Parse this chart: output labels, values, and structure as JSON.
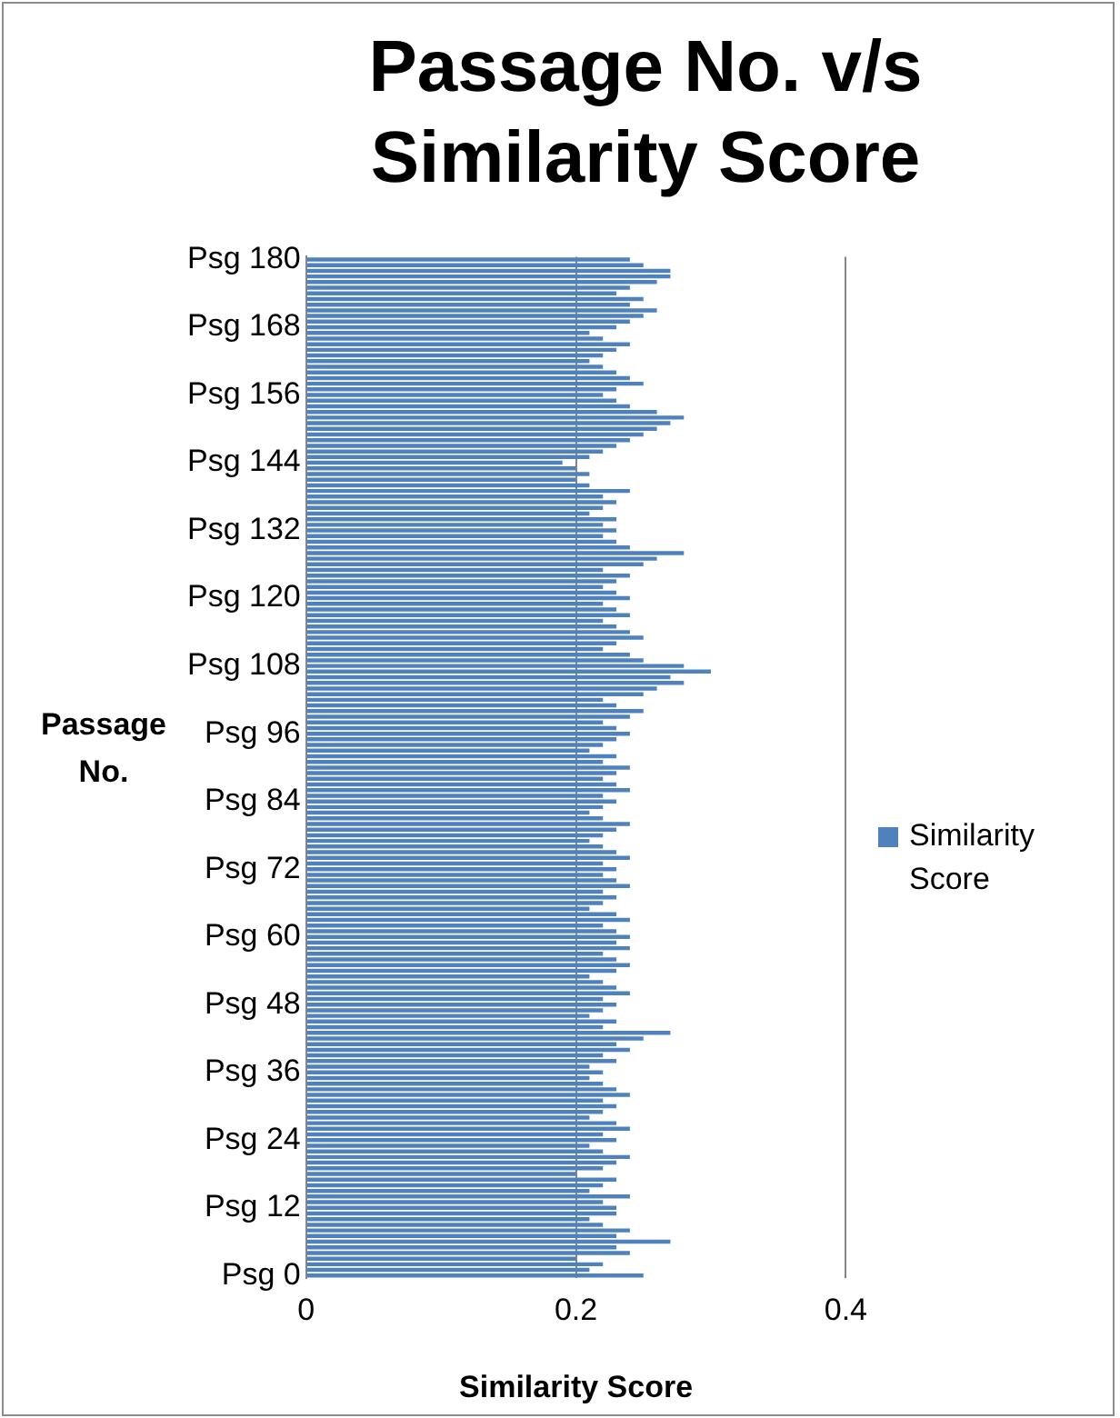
{
  "chart_data": {
    "type": "bar",
    "orientation": "horizontal",
    "title": "Passage No. v/s Similarity Score",
    "xlabel": "Similarity Score",
    "ylabel": "Passage No.",
    "categories": [
      "Psg 180",
      null,
      null,
      null,
      null,
      null,
      null,
      null,
      null,
      null,
      null,
      null,
      "Psg 168",
      null,
      null,
      null,
      null,
      null,
      null,
      null,
      null,
      null,
      null,
      null,
      "Psg 156",
      null,
      null,
      null,
      null,
      null,
      null,
      null,
      null,
      null,
      null,
      null,
      "Psg 144",
      null,
      null,
      null,
      null,
      null,
      null,
      null,
      null,
      null,
      null,
      null,
      "Psg 132",
      null,
      null,
      null,
      null,
      null,
      null,
      null,
      null,
      null,
      null,
      null,
      "Psg 120",
      null,
      null,
      null,
      null,
      null,
      null,
      null,
      null,
      null,
      null,
      null,
      "Psg 108",
      null,
      null,
      null,
      null,
      null,
      null,
      null,
      null,
      null,
      null,
      null,
      "Psg 96",
      null,
      null,
      null,
      null,
      null,
      null,
      null,
      null,
      null,
      null,
      null,
      "Psg 84",
      null,
      null,
      null,
      null,
      null,
      null,
      null,
      null,
      null,
      null,
      null,
      "Psg 72",
      null,
      null,
      null,
      null,
      null,
      null,
      null,
      null,
      null,
      null,
      null,
      "Psg 60",
      null,
      null,
      null,
      null,
      null,
      null,
      null,
      null,
      null,
      null,
      null,
      "Psg 48",
      null,
      null,
      null,
      null,
      null,
      null,
      null,
      null,
      null,
      null,
      null,
      "Psg 36",
      null,
      null,
      null,
      null,
      null,
      null,
      null,
      null,
      null,
      null,
      null,
      "Psg 24",
      null,
      null,
      null,
      null,
      null,
      null,
      null,
      null,
      null,
      null,
      null,
      "Psg 12",
      null,
      null,
      null,
      null,
      null,
      null,
      null,
      null,
      null,
      null,
      null,
      "Psg 0"
    ],
    "series": [
      {
        "name": "Similarity Score",
        "color": "#4f81bd",
        "values": [
          0.24,
          0.25,
          0.27,
          0.27,
          0.26,
          0.24,
          0.23,
          0.25,
          0.24,
          0.26,
          0.25,
          0.24,
          0.23,
          0.21,
          0.22,
          0.24,
          0.23,
          0.22,
          0.21,
          0.22,
          0.23,
          0.24,
          0.25,
          0.23,
          0.22,
          0.23,
          0.24,
          0.26,
          0.28,
          0.27,
          0.26,
          0.25,
          0.24,
          0.23,
          0.22,
          0.21,
          0.19,
          0.2,
          0.21,
          0.2,
          0.21,
          0.24,
          0.22,
          0.23,
          0.22,
          0.21,
          0.23,
          0.22,
          0.23,
          0.22,
          0.23,
          0.24,
          0.28,
          0.26,
          0.25,
          0.22,
          0.24,
          0.23,
          0.22,
          0.23,
          0.24,
          0.22,
          0.23,
          0.24,
          0.22,
          0.23,
          0.24,
          0.25,
          0.23,
          0.22,
          0.24,
          0.25,
          0.28,
          0.3,
          0.27,
          0.28,
          0.26,
          0.25,
          0.22,
          0.23,
          0.25,
          0.24,
          0.22,
          0.23,
          0.24,
          0.23,
          0.22,
          0.21,
          0.23,
          0.22,
          0.24,
          0.23,
          0.22,
          0.23,
          0.24,
          0.22,
          0.23,
          0.22,
          0.21,
          0.22,
          0.24,
          0.23,
          0.22,
          0.21,
          0.22,
          0.23,
          0.24,
          0.22,
          0.23,
          0.22,
          0.23,
          0.24,
          0.22,
          0.23,
          0.22,
          0.21,
          0.23,
          0.24,
          0.22,
          0.23,
          0.24,
          0.23,
          0.24,
          0.22,
          0.23,
          0.24,
          0.23,
          0.21,
          0.22,
          0.23,
          0.24,
          0.22,
          0.23,
          0.22,
          0.21,
          0.23,
          0.22,
          0.27,
          0.25,
          0.23,
          0.24,
          0.22,
          0.23,
          0.21,
          0.22,
          0.21,
          0.22,
          0.23,
          0.24,
          0.22,
          0.23,
          0.22,
          0.21,
          0.23,
          0.24,
          0.22,
          0.23,
          0.21,
          0.22,
          0.24,
          0.23,
          0.22,
          0.2,
          0.23,
          0.22,
          0.21,
          0.24,
          0.22,
          0.23,
          0.23,
          0.21,
          0.22,
          0.24,
          0.23,
          0.27,
          0.23,
          0.24,
          0.2,
          0.22,
          0.21,
          0.25
        ]
      }
    ],
    "xlim": [
      0,
      0.4
    ],
    "xticks": [
      0,
      0.2,
      0.4
    ],
    "grid": "x",
    "legend": "right"
  }
}
